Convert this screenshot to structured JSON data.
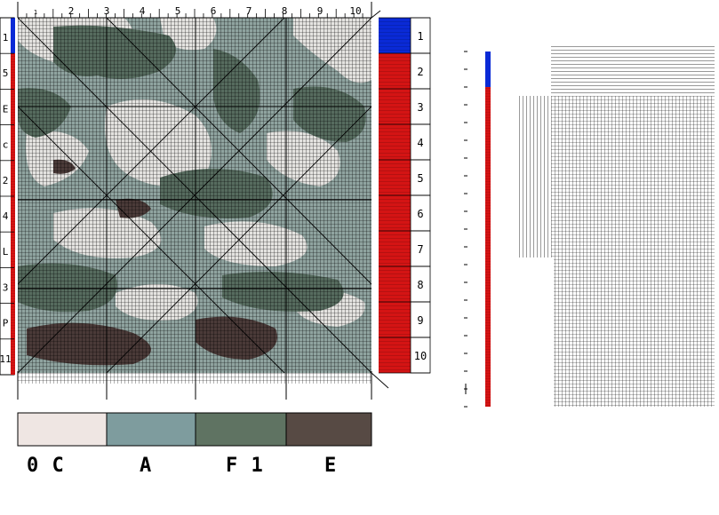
{
  "top_ruler": {
    "labels": [
      "1",
      "2",
      "3",
      "4",
      "5",
      "6",
      "7",
      "8",
      "9",
      "10"
    ]
  },
  "left_ruler": {
    "labels": [
      "1",
      "5",
      "E",
      "c",
      "2",
      "4",
      "L",
      "3",
      "P",
      "11"
    ]
  },
  "right_column": {
    "labels": [
      "1",
      "2",
      "3",
      "4",
      "5",
      "6",
      "7",
      "8",
      "9",
      "10"
    ]
  },
  "palette": {
    "swatches": [
      {
        "key": "0C",
        "label": "0  C",
        "color": "#efe6e3"
      },
      {
        "key": "A",
        "label": "A",
        "color": "#7e9c9e"
      },
      {
        "key": "F1",
        "label": "F 1",
        "color": "#5f7362"
      },
      {
        "key": "E",
        "label": "E",
        "color": "#574a44"
      }
    ]
  },
  "colors": {
    "bar_blue": "#0a2ad6",
    "bar_red": "#d41414",
    "grid_line": "#000000",
    "camo_light": "#e4e3e0",
    "camo_mid": "#8fa39f",
    "camo_dark": "#566b5e",
    "camo_brown": "#4a3a38"
  },
  "vertical_bar": {
    "blue_fraction": 0.1
  },
  "pattern_panel": {
    "description_hidden": ""
  }
}
